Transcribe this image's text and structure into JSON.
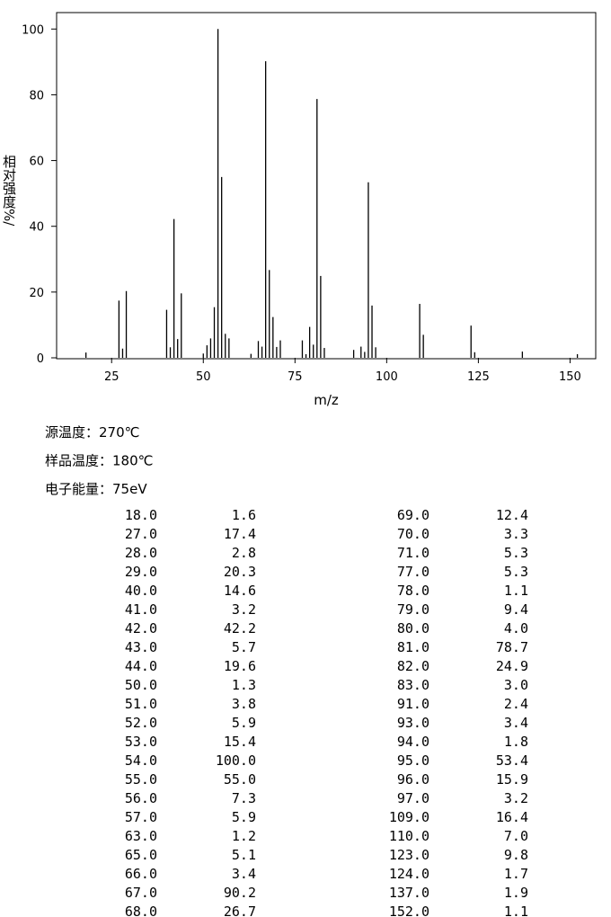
{
  "chart_data": {
    "type": "stem",
    "x_label": "m/z",
    "y_label": "相对强度%/",
    "x": [
      18,
      27,
      28,
      29,
      40,
      41,
      42,
      43,
      44,
      50,
      51,
      52,
      53,
      54,
      55,
      56,
      57,
      63,
      65,
      66,
      67,
      68,
      69,
      70,
      71,
      77,
      78,
      79,
      80,
      81,
      82,
      83,
      91,
      93,
      94,
      95,
      96,
      97,
      109,
      110,
      123,
      124,
      137,
      152
    ],
    "values": [
      1.6,
      17.4,
      2.8,
      20.3,
      14.6,
      3.2,
      42.2,
      5.7,
      19.6,
      1.3,
      3.8,
      5.9,
      15.4,
      100.0,
      55.0,
      7.3,
      5.9,
      1.2,
      5.1,
      3.4,
      90.2,
      26.7,
      12.4,
      3.3,
      5.3,
      5.3,
      1.1,
      9.4,
      4.0,
      78.7,
      24.9,
      3.0,
      2.4,
      3.4,
      1.8,
      53.4,
      15.9,
      3.2,
      16.4,
      7.0,
      9.8,
      1.7,
      1.9,
      1.1
    ],
    "x_labels": [
      "18.0",
      "27.0",
      "28.0",
      "29.0",
      "40.0",
      "41.0",
      "42.0",
      "43.0",
      "44.0",
      "50.0",
      "51.0",
      "52.0",
      "53.0",
      "54.0",
      "55.0",
      "56.0",
      "57.0",
      "63.0",
      "65.0",
      "66.0",
      "67.0",
      "68.0",
      "69.0",
      "70.0",
      "71.0",
      "77.0",
      "78.0",
      "79.0",
      "80.0",
      "81.0",
      "82.0",
      "83.0",
      "91.0",
      "93.0",
      "94.0",
      "95.0",
      "96.0",
      "97.0",
      "109.0",
      "110.0",
      "123.0",
      "124.0",
      "137.0",
      "152.0"
    ],
    "value_labels": [
      "1.6",
      "17.4",
      "2.8",
      "20.3",
      "14.6",
      "3.2",
      "42.2",
      "5.7",
      "19.6",
      "1.3",
      "3.8",
      "5.9",
      "15.4",
      "100.0",
      "55.0",
      "7.3",
      "5.9",
      "1.2",
      "5.1",
      "3.4",
      "90.2",
      "26.7",
      "12.4",
      "3.3",
      "5.3",
      "5.3",
      "1.1",
      "9.4",
      "4.0",
      "78.7",
      "24.9",
      "3.0",
      "2.4",
      "3.4",
      "1.8",
      "53.4",
      "15.9",
      "3.2",
      "16.4",
      "7.0",
      "9.8",
      "1.7",
      "1.9",
      "1.1"
    ],
    "color": "#000000",
    "xlim": [
      10,
      157
    ],
    "xticks": [
      25,
      50,
      75,
      100,
      125,
      150
    ],
    "ylim": [
      0,
      105
    ],
    "yticks": [
      0,
      20,
      40,
      60,
      80,
      100
    ]
  },
  "info": [
    "源温度：270℃",
    "样品温度：180℃",
    "电子能量：75eV"
  ]
}
